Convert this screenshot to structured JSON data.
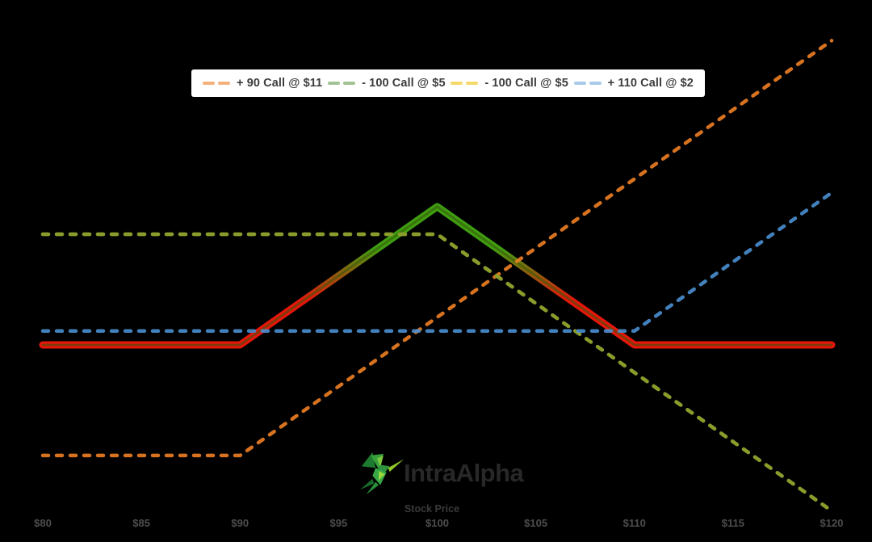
{
  "page": {
    "background": "#000000"
  },
  "legend": {
    "items": [
      {
        "label": "+ 90 Call @ $11",
        "swatch_color": "#f4b17c"
      },
      {
        "label": "- 100 Call @ $5",
        "swatch_color": "#a2c495"
      },
      {
        "label": "- 100 Call @ $5",
        "swatch_color": "#f7d96b"
      },
      {
        "label": "+ 110 Call @ $2",
        "swatch_color": "#a9cbe9"
      }
    ]
  },
  "branding": {
    "logo_text": "IntraAlpha"
  },
  "chart_data": {
    "type": "line",
    "title": "",
    "xlabel": "Stock Price",
    "ylabel": "",
    "x_tick_labels": [
      "$80",
      "$85",
      "$90",
      "$95",
      "$100",
      "$105",
      "$110",
      "$115",
      "$120"
    ],
    "x_tick_values": [
      80,
      85,
      90,
      95,
      100,
      105,
      110,
      115,
      120
    ],
    "xlim": [
      80,
      120
    ],
    "ylim_estimate": [
      -17,
      20
    ],
    "grid": false,
    "legend_position": "top-center",
    "series": [
      {
        "name": "+ 90 Call @ $11",
        "style": "dashed",
        "color": "#ee7f24",
        "points": [
          [
            80,
            -11
          ],
          [
            90,
            -11
          ],
          [
            120,
            19
          ]
        ]
      },
      {
        "name": "- 100 Call @ $5",
        "style": "dashed",
        "color": "#6fa352",
        "points": [
          [
            80,
            5
          ],
          [
            100,
            5
          ],
          [
            120,
            -15
          ]
        ]
      },
      {
        "name": "- 100 Call @ $5",
        "style": "dashed",
        "color": "#8f9d28",
        "points": [
          [
            80,
            5
          ],
          [
            100,
            5
          ],
          [
            120,
            -15
          ]
        ]
      },
      {
        "name": "+ 110 Call @ $2",
        "style": "dashed",
        "color": "#4a8fd2",
        "points": [
          [
            80,
            -2
          ],
          [
            110,
            -2
          ],
          [
            120,
            8
          ]
        ]
      },
      {
        "name": "combined payoff",
        "style": "solid-thick",
        "profit_color": "#3f9e10",
        "loss_color": "#e8150a",
        "core_color": "rgba(55,85,10,0.6)",
        "points": [
          [
            80,
            -3
          ],
          [
            90,
            -3
          ],
          [
            100,
            7
          ],
          [
            110,
            -3
          ],
          [
            120,
            -3
          ]
        ]
      }
    ]
  }
}
